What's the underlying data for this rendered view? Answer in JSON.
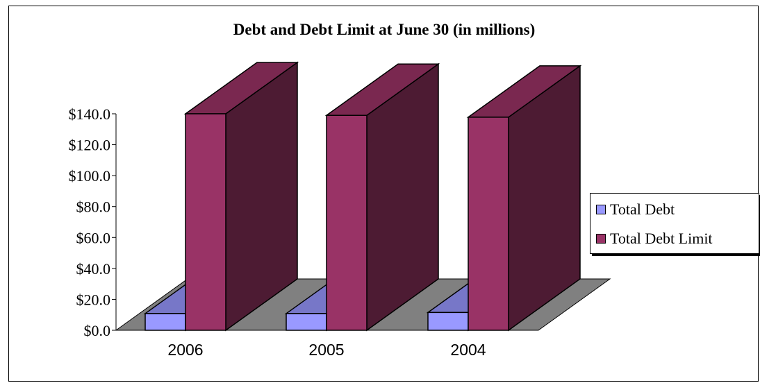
{
  "chart_data": {
    "type": "bar",
    "title": "Debt and Debt Limit at June 30 (in millions)",
    "categories": [
      "2006",
      "2005",
      "2004"
    ],
    "series": [
      {
        "name": "Total Debt",
        "values": [
          10.8,
          10.8,
          11.5
        ]
      },
      {
        "name": "Total Debt Limit",
        "values": [
          140.0,
          139.0,
          137.8
        ]
      }
    ],
    "y_ticks": [
      "$0.0",
      "$20.0",
      "$40.0",
      "$60.0",
      "$80.0",
      "$100.0",
      "$120.0",
      "$140.0"
    ],
    "ylim": [
      0,
      140
    ],
    "legend_position": "right",
    "grid": false,
    "colors": {
      "total_debt_front": "#9999ff",
      "total_debt_top": "#7777c8",
      "total_debt_side": "#5a5aa8",
      "limit_front": "#993366",
      "limit_top": "#7a2850",
      "limit_side": "#4d1b33",
      "floor": "#808080"
    }
  }
}
